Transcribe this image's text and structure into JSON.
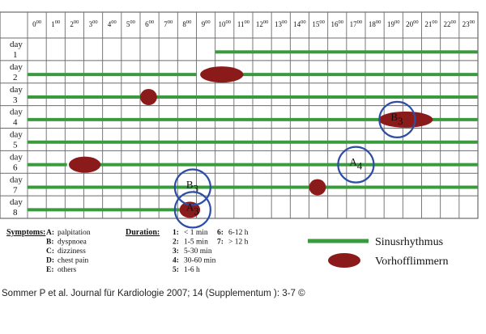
{
  "chart_data": {
    "type": "timeline",
    "hours": [
      "0",
      "1",
      "2",
      "3",
      "4",
      "5",
      "6",
      "7",
      "8",
      "9",
      "10",
      "11",
      "12",
      "13",
      "14",
      "15",
      "16",
      "17",
      "18",
      "19",
      "20",
      "21",
      "22",
      "23"
    ],
    "hour_suffix": "00",
    "days": [
      {
        "word": "day",
        "num": "1"
      },
      {
        "word": "day",
        "num": "2"
      },
      {
        "word": "day",
        "num": "3"
      },
      {
        "word": "day",
        "num": "4"
      },
      {
        "word": "day",
        "num": "5"
      },
      {
        "word": "day",
        "num": "6"
      },
      {
        "word": "day",
        "num": "7"
      },
      {
        "word": "day",
        "num": "8"
      }
    ],
    "sinus_rhythm": [
      {
        "day": 1,
        "start": 10,
        "end": 24
      },
      {
        "day": 2,
        "start": 0,
        "end": 9
      },
      {
        "day": 2,
        "start": 11,
        "end": 24
      },
      {
        "day": 3,
        "start": 0,
        "end": 24
      },
      {
        "day": 4,
        "start": 0,
        "end": 19
      },
      {
        "day": 4,
        "start": 21,
        "end": 24
      },
      {
        "day": 5,
        "start": 0,
        "end": 24
      },
      {
        "day": 6,
        "start": 0,
        "end": 2.1
      },
      {
        "day": 6,
        "start": 3.7,
        "end": 24
      },
      {
        "day": 7,
        "start": 0,
        "end": 15
      },
      {
        "day": 7,
        "start": 15.8,
        "end": 24
      },
      {
        "day": 8,
        "start": 0,
        "end": 8.1
      }
    ],
    "atrial_fibrillation": [
      {
        "day": 2,
        "start": 9.2,
        "end": 11.5
      },
      {
        "day": 3,
        "start": 6.0,
        "end": 6.9
      },
      {
        "day": 4,
        "start": 18.7,
        "end": 21.6
      },
      {
        "day": 6,
        "start": 2.2,
        "end": 3.9
      },
      {
        "day": 7,
        "start": 15.0,
        "end": 15.9
      },
      {
        "day": 8,
        "start": 8.1,
        "end": 9.2
      }
    ],
    "symptom_events": [
      {
        "day": 4,
        "time": 19.7,
        "symptom": "B",
        "duration": "3"
      },
      {
        "day": 6,
        "time": 17.5,
        "symptom": "A",
        "duration": "4"
      },
      {
        "day": 7,
        "time": 8.8,
        "symptom": "B",
        "duration": "3"
      },
      {
        "day": 8,
        "time": 8.8,
        "symptom": "A",
        "duration": "3"
      }
    ],
    "symptoms_legend": {
      "title": "Symptoms:",
      "items": [
        {
          "key": "A:",
          "text": "palpitation"
        },
        {
          "key": "B:",
          "text": "dyspnoea"
        },
        {
          "key": "C:",
          "text": "dizziness"
        },
        {
          "key": "D:",
          "text": "chest pain"
        },
        {
          "key": "E:",
          "text": "others"
        }
      ]
    },
    "duration_legend": {
      "title": "Duration:",
      "col1": [
        {
          "key": "1:",
          "text": "< 1 min"
        },
        {
          "key": "2:",
          "text": "1-5 min"
        },
        {
          "key": "3:",
          "text": "5-30 min"
        },
        {
          "key": "4:",
          "text": "30-60 min"
        },
        {
          "key": "5:",
          "text": "1-6 h"
        }
      ],
      "col2": [
        {
          "key": "6:",
          "text": "6-12 h"
        },
        {
          "key": "7:",
          "text": "> 12 h"
        }
      ]
    },
    "series_legend": [
      {
        "name": "Sinusrhythmus",
        "shape": "line",
        "color": "#3a9a3e"
      },
      {
        "name": "Vorhofflimmern",
        "shape": "ellipse",
        "color": "#8b1a1a"
      }
    ],
    "colors": {
      "sinus": "#3a9a3e",
      "af": "#8b1a1a",
      "symptom_ring": "#2d4ea5",
      "grid": "#6b6b6b"
    }
  },
  "caption": "Sommer P et al. Journal für Kardiologie 2007; 14 (Supplementum ): 3-7 ©"
}
